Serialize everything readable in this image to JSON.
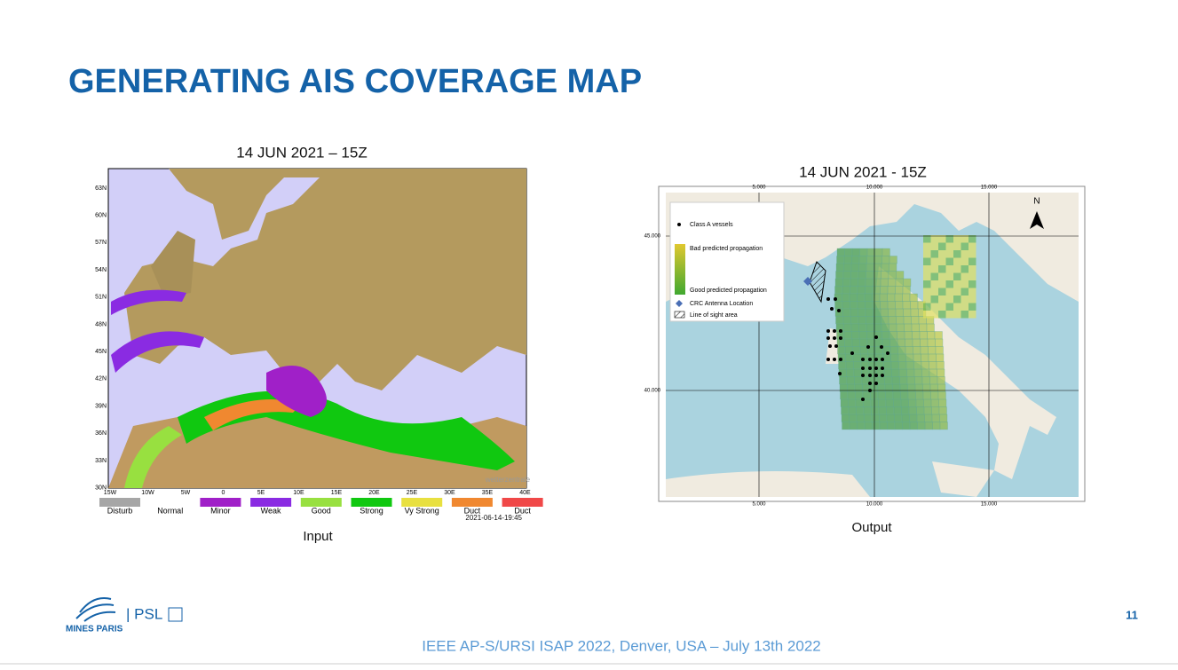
{
  "header": {
    "title": "GENERATING AIS COVERAGE MAP"
  },
  "input_panel": {
    "title": "14 JUN 2021 – 15Z",
    "caption": "Input",
    "lat_labels": [
      "63N",
      "60N",
      "57N",
      "54N",
      "51N",
      "48N",
      "45N",
      "42N",
      "39N",
      "36N",
      "33N",
      "30N"
    ],
    "lon_labels": [
      "15W",
      "10W",
      "5W",
      "0",
      "5E",
      "10E",
      "15E",
      "20E",
      "25E",
      "30E",
      "35E",
      "40E"
    ],
    "legend": [
      {
        "label": "Disturb",
        "color": "#a6a6a6"
      },
      {
        "label": "Normal",
        "color": "#ffffff"
      },
      {
        "label": "Minor",
        "color": "#a020c8"
      },
      {
        "label": "Weak",
        "color": "#8a2be2"
      },
      {
        "label": "Good",
        "color": "#98e040"
      },
      {
        "label": "Strong",
        "color": "#10c810"
      },
      {
        "label": "Vy Strong",
        "color": "#e8e040"
      },
      {
        "label": "Duct",
        "color": "#f08830"
      },
      {
        "label": "Duct",
        "color": "#f04848"
      }
    ],
    "timestamp": "2021-06-14-19:45"
  },
  "output_panel": {
    "title": "14 JUN 2021 - 15Z",
    "caption": "Output",
    "lon_labels": [
      "5.000",
      "10.000",
      "15.000"
    ],
    "lat_labels": [
      "45.000",
      "40.000"
    ],
    "north": "N",
    "legend": {
      "vessels": "Class A vessels",
      "bad": "Bad predicted propagation",
      "good": "Good predicted propagation",
      "antenna": "CRC Antenna Location",
      "los": "Line of sight area"
    }
  },
  "footer": {
    "logo": "MINES PARIS",
    "psl": "| PSL",
    "conference": "IEEE AP-S/URSI  ISAP 2022, Denver, USA – July 13th 2022",
    "page": "11"
  }
}
